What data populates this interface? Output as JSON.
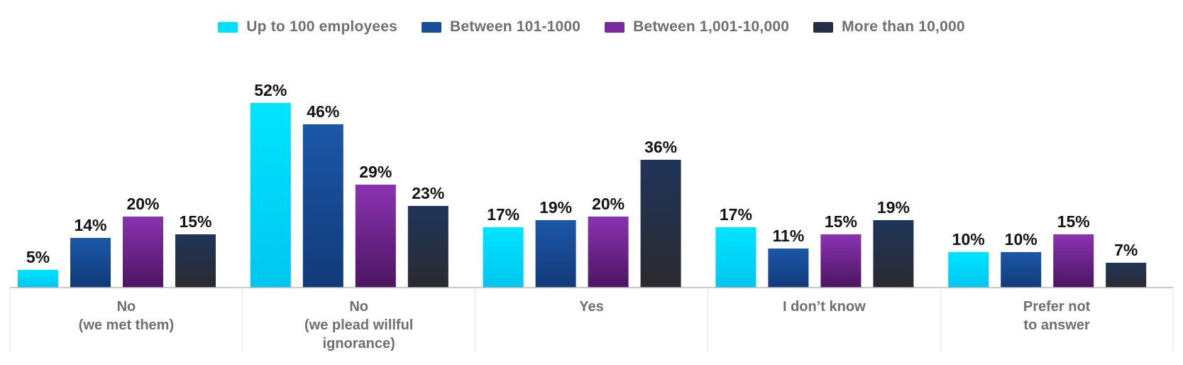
{
  "chart_data": {
    "type": "bar",
    "categories": [
      [
        "No",
        "(we met them)"
      ],
      [
        "No",
        "(we plead willful",
        "ignorance)"
      ],
      [
        "Yes"
      ],
      [
        "I don’t know"
      ],
      [
        "Prefer not",
        "to answer"
      ]
    ],
    "series": [
      {
        "name": "Up to 100 employees",
        "color_top": "#00e5ff",
        "color_bottom": "#00c6f0",
        "values": [
          5,
          52,
          17,
          17,
          10
        ]
      },
      {
        "name": "Between 101-1000",
        "color_top": "#1c57a8",
        "color_bottom": "#113a78",
        "values": [
          14,
          46,
          19,
          11,
          10
        ]
      },
      {
        "name": "Between 1,001-10,000",
        "color_top": "#8a33b0",
        "color_bottom": "#4b1560",
        "values": [
          20,
          29,
          20,
          15,
          15
        ]
      },
      {
        "name": "More than 10,000",
        "color_top": "#20355a",
        "color_bottom": "#2a2a2e",
        "values": [
          15,
          23,
          36,
          19,
          7
        ]
      }
    ],
    "value_suffix": "%",
    "ylim": [
      0,
      60
    ],
    "grid": false,
    "legend_position": "top-center"
  },
  "colors": {
    "axis": "#b9b9b9",
    "label_text": "#141414",
    "category_text": "#6f6f6f"
  }
}
